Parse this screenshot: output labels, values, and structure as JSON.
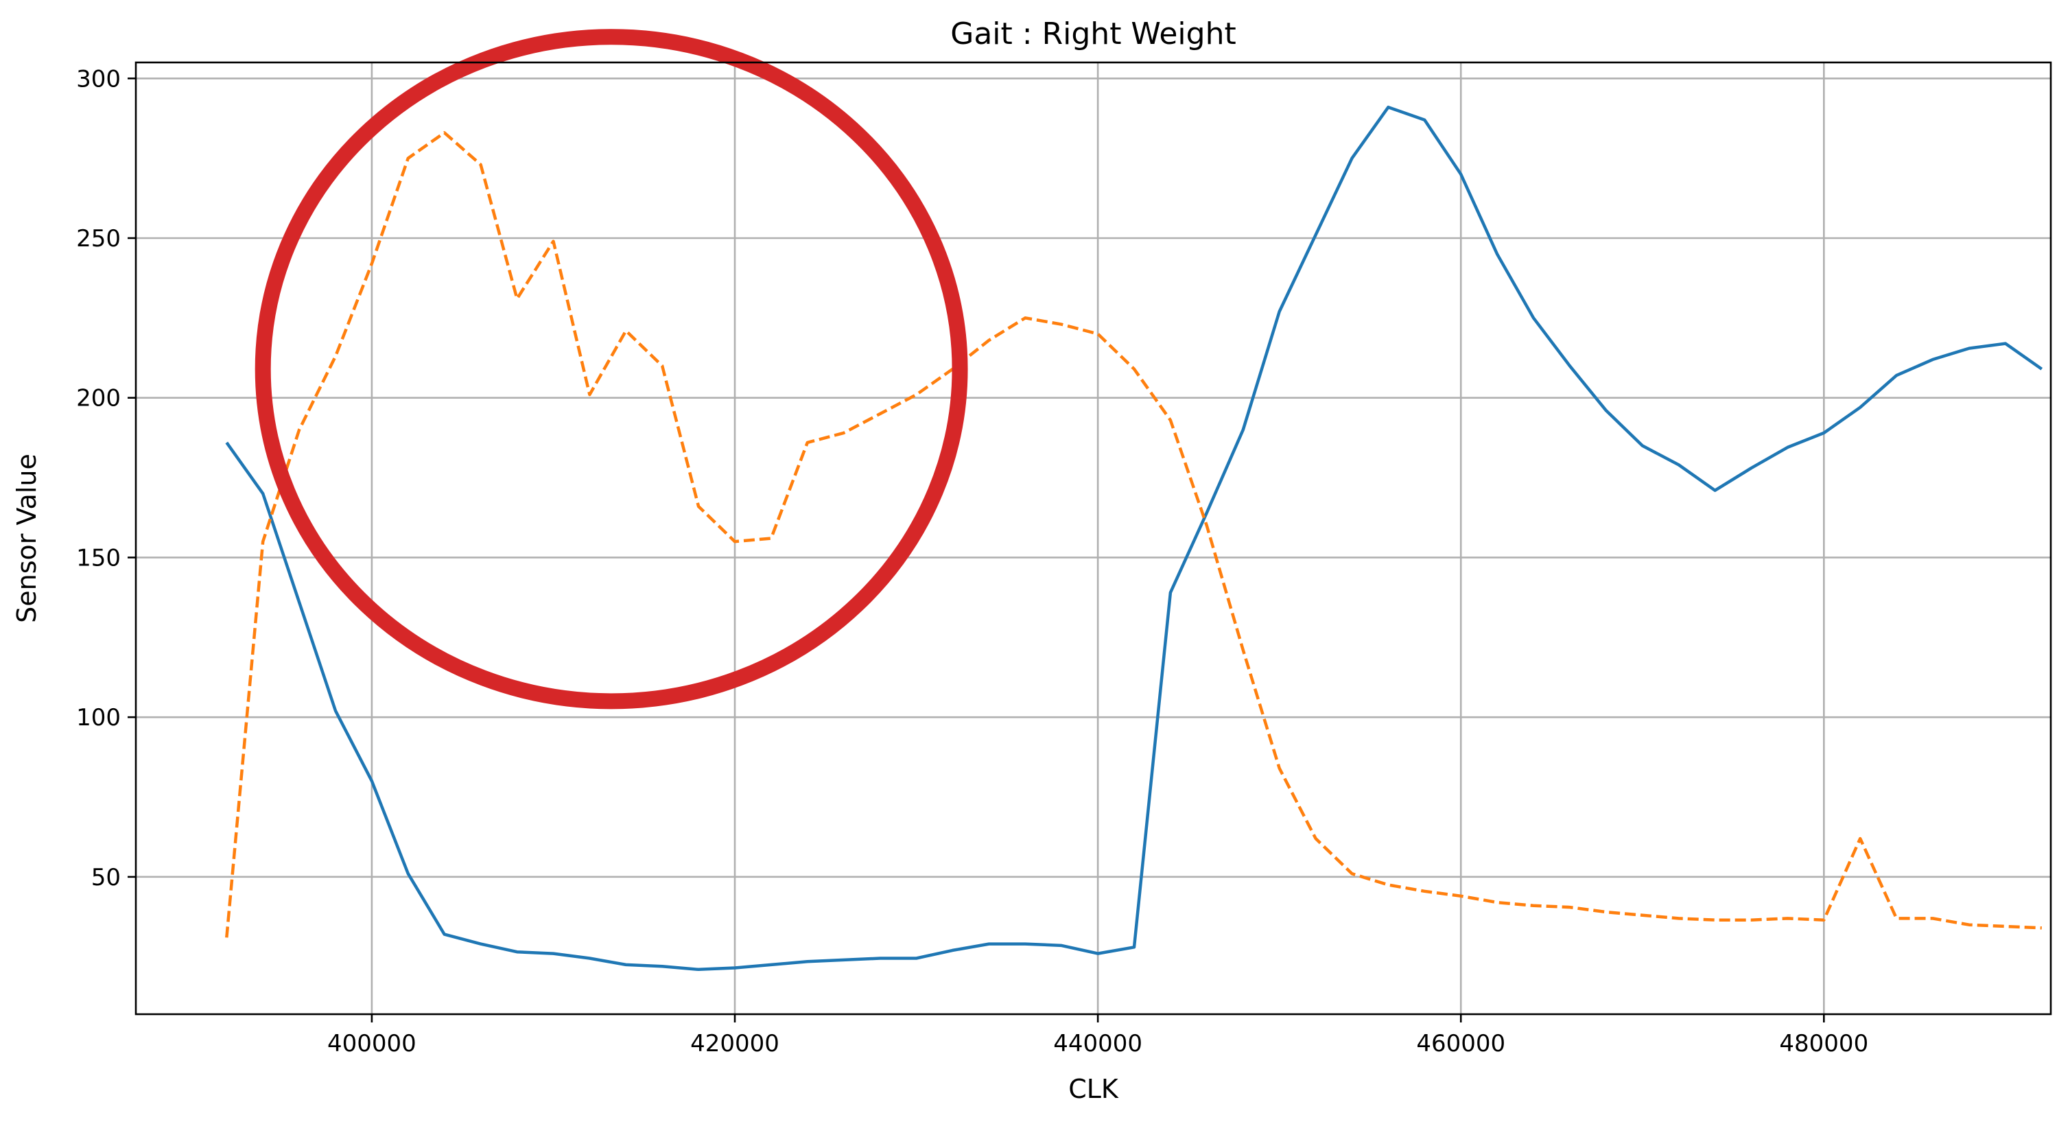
{
  "chart_data": {
    "type": "line",
    "title": "Gait : Right Weight",
    "xlabel": "CLK",
    "ylabel": "Sensor Value",
    "xlim": [
      387000,
      492500
    ],
    "ylim": [
      7,
      305
    ],
    "xticks": [
      400000,
      420000,
      440000,
      460000,
      480000
    ],
    "yticks": [
      50,
      100,
      150,
      200,
      250,
      300
    ],
    "grid": true,
    "series": [
      {
        "color": "#1f77b4",
        "style": "solid",
        "points": [
          [
            392000,
            186
          ],
          [
            394000,
            170
          ],
          [
            396000,
            136
          ],
          [
            398000,
            102
          ],
          [
            400000,
            80
          ],
          [
            402000,
            51
          ],
          [
            404000,
            32
          ],
          [
            406000,
            29
          ],
          [
            408000,
            26.5
          ],
          [
            410000,
            26
          ],
          [
            412000,
            24.5
          ],
          [
            414000,
            22.5
          ],
          [
            416000,
            22
          ],
          [
            418000,
            21
          ],
          [
            420000,
            21.5
          ],
          [
            422000,
            22.5
          ],
          [
            424000,
            23.5
          ],
          [
            426000,
            24
          ],
          [
            428000,
            24.5
          ],
          [
            430000,
            24.5
          ],
          [
            432000,
            27
          ],
          [
            434000,
            29
          ],
          [
            436000,
            29
          ],
          [
            438000,
            28.5
          ],
          [
            440000,
            26
          ],
          [
            442000,
            28
          ],
          [
            444000,
            139
          ],
          [
            446000,
            164
          ],
          [
            448000,
            190
          ],
          [
            450000,
            227
          ],
          [
            452000,
            251
          ],
          [
            454000,
            275
          ],
          [
            456000,
            291
          ],
          [
            458000,
            287
          ],
          [
            460000,
            270
          ],
          [
            462000,
            245
          ],
          [
            464000,
            225
          ],
          [
            466000,
            210
          ],
          [
            468000,
            196
          ],
          [
            470000,
            185
          ],
          [
            472000,
            179
          ],
          [
            474000,
            171
          ],
          [
            476000,
            178
          ],
          [
            478000,
            184.5
          ],
          [
            480000,
            189
          ],
          [
            482000,
            197
          ],
          [
            484000,
            207
          ],
          [
            486000,
            212
          ],
          [
            488000,
            215.5
          ],
          [
            490000,
            217
          ],
          [
            492000,
            209
          ]
        ]
      },
      {
        "color": "#ff7f0e",
        "style": "dashed",
        "points": [
          [
            392000,
            31
          ],
          [
            394000,
            155
          ],
          [
            396000,
            190
          ],
          [
            398000,
            213
          ],
          [
            400000,
            242
          ],
          [
            402000,
            275
          ],
          [
            404000,
            283
          ],
          [
            406000,
            273
          ],
          [
            408000,
            231
          ],
          [
            410000,
            249
          ],
          [
            412000,
            201
          ],
          [
            414000,
            221
          ],
          [
            416000,
            210
          ],
          [
            418000,
            166
          ],
          [
            420000,
            155
          ],
          [
            422000,
            156
          ],
          [
            424000,
            186
          ],
          [
            426000,
            189
          ],
          [
            428000,
            195
          ],
          [
            430000,
            201
          ],
          [
            432000,
            209
          ],
          [
            434000,
            218
          ],
          [
            436000,
            225
          ],
          [
            438000,
            223
          ],
          [
            440000,
            220
          ],
          [
            442000,
            209
          ],
          [
            444000,
            193
          ],
          [
            446000,
            160
          ],
          [
            448000,
            121
          ],
          [
            450000,
            84
          ],
          [
            452000,
            62
          ],
          [
            454000,
            51
          ],
          [
            456000,
            47.5
          ],
          [
            458000,
            45.5
          ],
          [
            460000,
            44
          ],
          [
            462000,
            42
          ],
          [
            464000,
            41
          ],
          [
            466000,
            40.5
          ],
          [
            468000,
            39
          ],
          [
            470000,
            38
          ],
          [
            472000,
            37
          ],
          [
            474000,
            36.5
          ],
          [
            476000,
            36.5
          ],
          [
            478000,
            37
          ],
          [
            480000,
            36.5
          ],
          [
            482000,
            62
          ],
          [
            484000,
            37
          ],
          [
            486000,
            37
          ],
          [
            488000,
            35
          ],
          [
            490000,
            34.5
          ],
          [
            492000,
            34
          ]
        ]
      }
    ],
    "annotations": [
      {
        "type": "circle",
        "color": "#d62728",
        "center": [
          413200,
          209
        ],
        "radius_x": 19200,
        "radius_y": 104
      }
    ]
  }
}
